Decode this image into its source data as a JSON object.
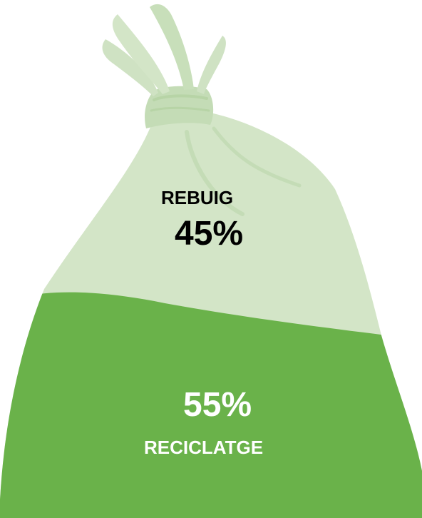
{
  "chart_data": {
    "type": "pie",
    "series": [
      {
        "name": "REBUIG",
        "value": 45,
        "value_label": "45%",
        "color": "#d3e5c7"
      },
      {
        "name": "RECICLATGE",
        "value": 55,
        "value_label": "55%",
        "color": "#6ab24a"
      }
    ],
    "style": "filled-bag-pictogram"
  },
  "colors": {
    "bag_light": "#d3e5c7",
    "knot_light": "#c4dcb6",
    "bag_dark": "#6ab24a"
  }
}
